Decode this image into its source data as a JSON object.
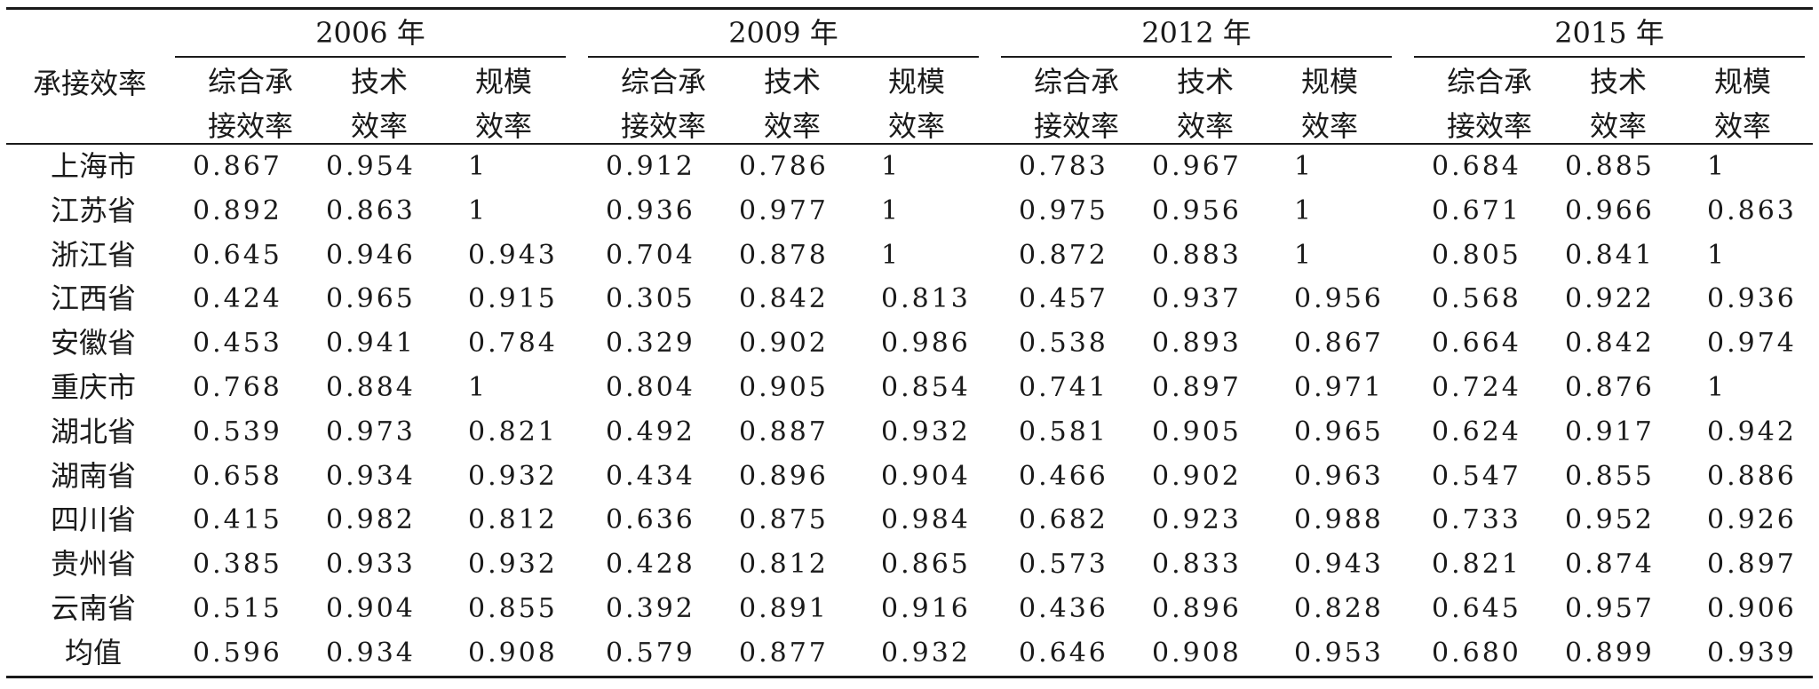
{
  "corner_label": "承接效率",
  "years": [
    "2006 年",
    "2009 年",
    "2012 年",
    "2015 年"
  ],
  "sub_headers": [
    {
      "line1": "综合承",
      "line2": "接效率"
    },
    {
      "line1": "技术",
      "line2": "效率"
    },
    {
      "line1": "规模",
      "line2": "效率"
    }
  ],
  "rows": [
    {
      "name": "上海市",
      "values": [
        "0.867",
        "0.954",
        "1",
        "0.912",
        "0.786",
        "1",
        "0.783",
        "0.967",
        "1",
        "0.684",
        "0.885",
        "1"
      ]
    },
    {
      "name": "江苏省",
      "values": [
        "0.892",
        "0.863",
        "1",
        "0.936",
        "0.977",
        "1",
        "0.975",
        "0.956",
        "1",
        "0.671",
        "0.966",
        "0.863"
      ]
    },
    {
      "name": "浙江省",
      "values": [
        "0.645",
        "0.946",
        "0.943",
        "0.704",
        "0.878",
        "1",
        "0.872",
        "0.883",
        "1",
        "0.805",
        "0.841",
        "1"
      ]
    },
    {
      "name": "江西省",
      "values": [
        "0.424",
        "0.965",
        "0.915",
        "0.305",
        "0.842",
        "0.813",
        "0.457",
        "0.937",
        "0.956",
        "0.568",
        "0.922",
        "0.936"
      ]
    },
    {
      "name": "安徽省",
      "values": [
        "0.453",
        "0.941",
        "0.784",
        "0.329",
        "0.902",
        "0.986",
        "0.538",
        "0.893",
        "0.867",
        "0.664",
        "0.842",
        "0.974"
      ]
    },
    {
      "name": "重庆市",
      "values": [
        "0.768",
        "0.884",
        "1",
        "0.804",
        "0.905",
        "0.854",
        "0.741",
        "0.897",
        "0.971",
        "0.724",
        "0.876",
        "1"
      ]
    },
    {
      "name": "湖北省",
      "values": [
        "0.539",
        "0.973",
        "0.821",
        "0.492",
        "0.887",
        "0.932",
        "0.581",
        "0.905",
        "0.965",
        "0.624",
        "0.917",
        "0.942"
      ]
    },
    {
      "name": "湖南省",
      "values": [
        "0.658",
        "0.934",
        "0.932",
        "0.434",
        "0.896",
        "0.904",
        "0.466",
        "0.902",
        "0.963",
        "0.547",
        "0.855",
        "0.886"
      ]
    },
    {
      "name": "四川省",
      "values": [
        "0.415",
        "0.982",
        "0.812",
        "0.636",
        "0.875",
        "0.984",
        "0.682",
        "0.923",
        "0.988",
        "0.733",
        "0.952",
        "0.926"
      ]
    },
    {
      "name": "贵州省",
      "values": [
        "0.385",
        "0.933",
        "0.932",
        "0.428",
        "0.812",
        "0.865",
        "0.573",
        "0.833",
        "0.943",
        "0.821",
        "0.874",
        "0.897"
      ]
    },
    {
      "name": "云南省",
      "values": [
        "0.515",
        "0.904",
        "0.855",
        "0.392",
        "0.891",
        "0.916",
        "0.436",
        "0.896",
        "0.828",
        "0.645",
        "0.957",
        "0.906"
      ]
    },
    {
      "name": "均值",
      "values": [
        "0.596",
        "0.934",
        "0.908",
        "0.579",
        "0.877",
        "0.932",
        "0.646",
        "0.908",
        "0.953",
        "0.680",
        "0.899",
        "0.939"
      ]
    }
  ]
}
